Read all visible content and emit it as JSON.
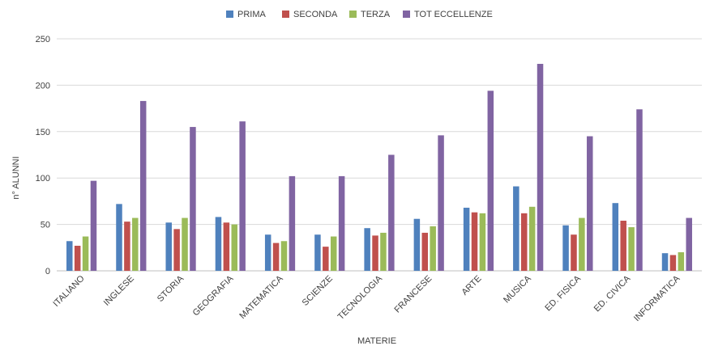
{
  "chart_data": {
    "type": "bar",
    "title": "",
    "xlabel": "MATERIE",
    "ylabel": "n° ALUNNI",
    "ylim": [
      0,
      250
    ],
    "yticks": [
      0,
      50,
      100,
      150,
      200,
      250
    ],
    "grid": true,
    "legend_position": "top",
    "categories": [
      "ITALIANO",
      "INGLESE",
      "STORIA",
      "GEOGRAFIA",
      "MATEMATICA",
      "SCIENZE",
      "TECNOLOGIA",
      "FRANCESE",
      "ARTE",
      "MUSICA",
      "ED. FISICA",
      "ED. CIVICA",
      "INFORMATICA"
    ],
    "series": [
      {
        "name": "PRIMA",
        "color": "#4f81bd",
        "values": [
          32,
          72,
          52,
          58,
          39,
          39,
          46,
          56,
          68,
          91,
          49,
          73,
          19
        ]
      },
      {
        "name": "SECONDA",
        "color": "#c0504d",
        "values": [
          27,
          53,
          45,
          52,
          30,
          26,
          38,
          41,
          63,
          62,
          39,
          54,
          17
        ]
      },
      {
        "name": "TERZA",
        "color": "#9bbb59",
        "values": [
          37,
          57,
          57,
          50,
          32,
          37,
          41,
          48,
          62,
          69,
          57,
          47,
          20
        ]
      },
      {
        "name": "TOT ECCELLENZE",
        "color": "#8064a2",
        "values": [
          97,
          183,
          155,
          161,
          102,
          102,
          125,
          146,
          194,
          223,
          145,
          174,
          57
        ]
      }
    ]
  }
}
